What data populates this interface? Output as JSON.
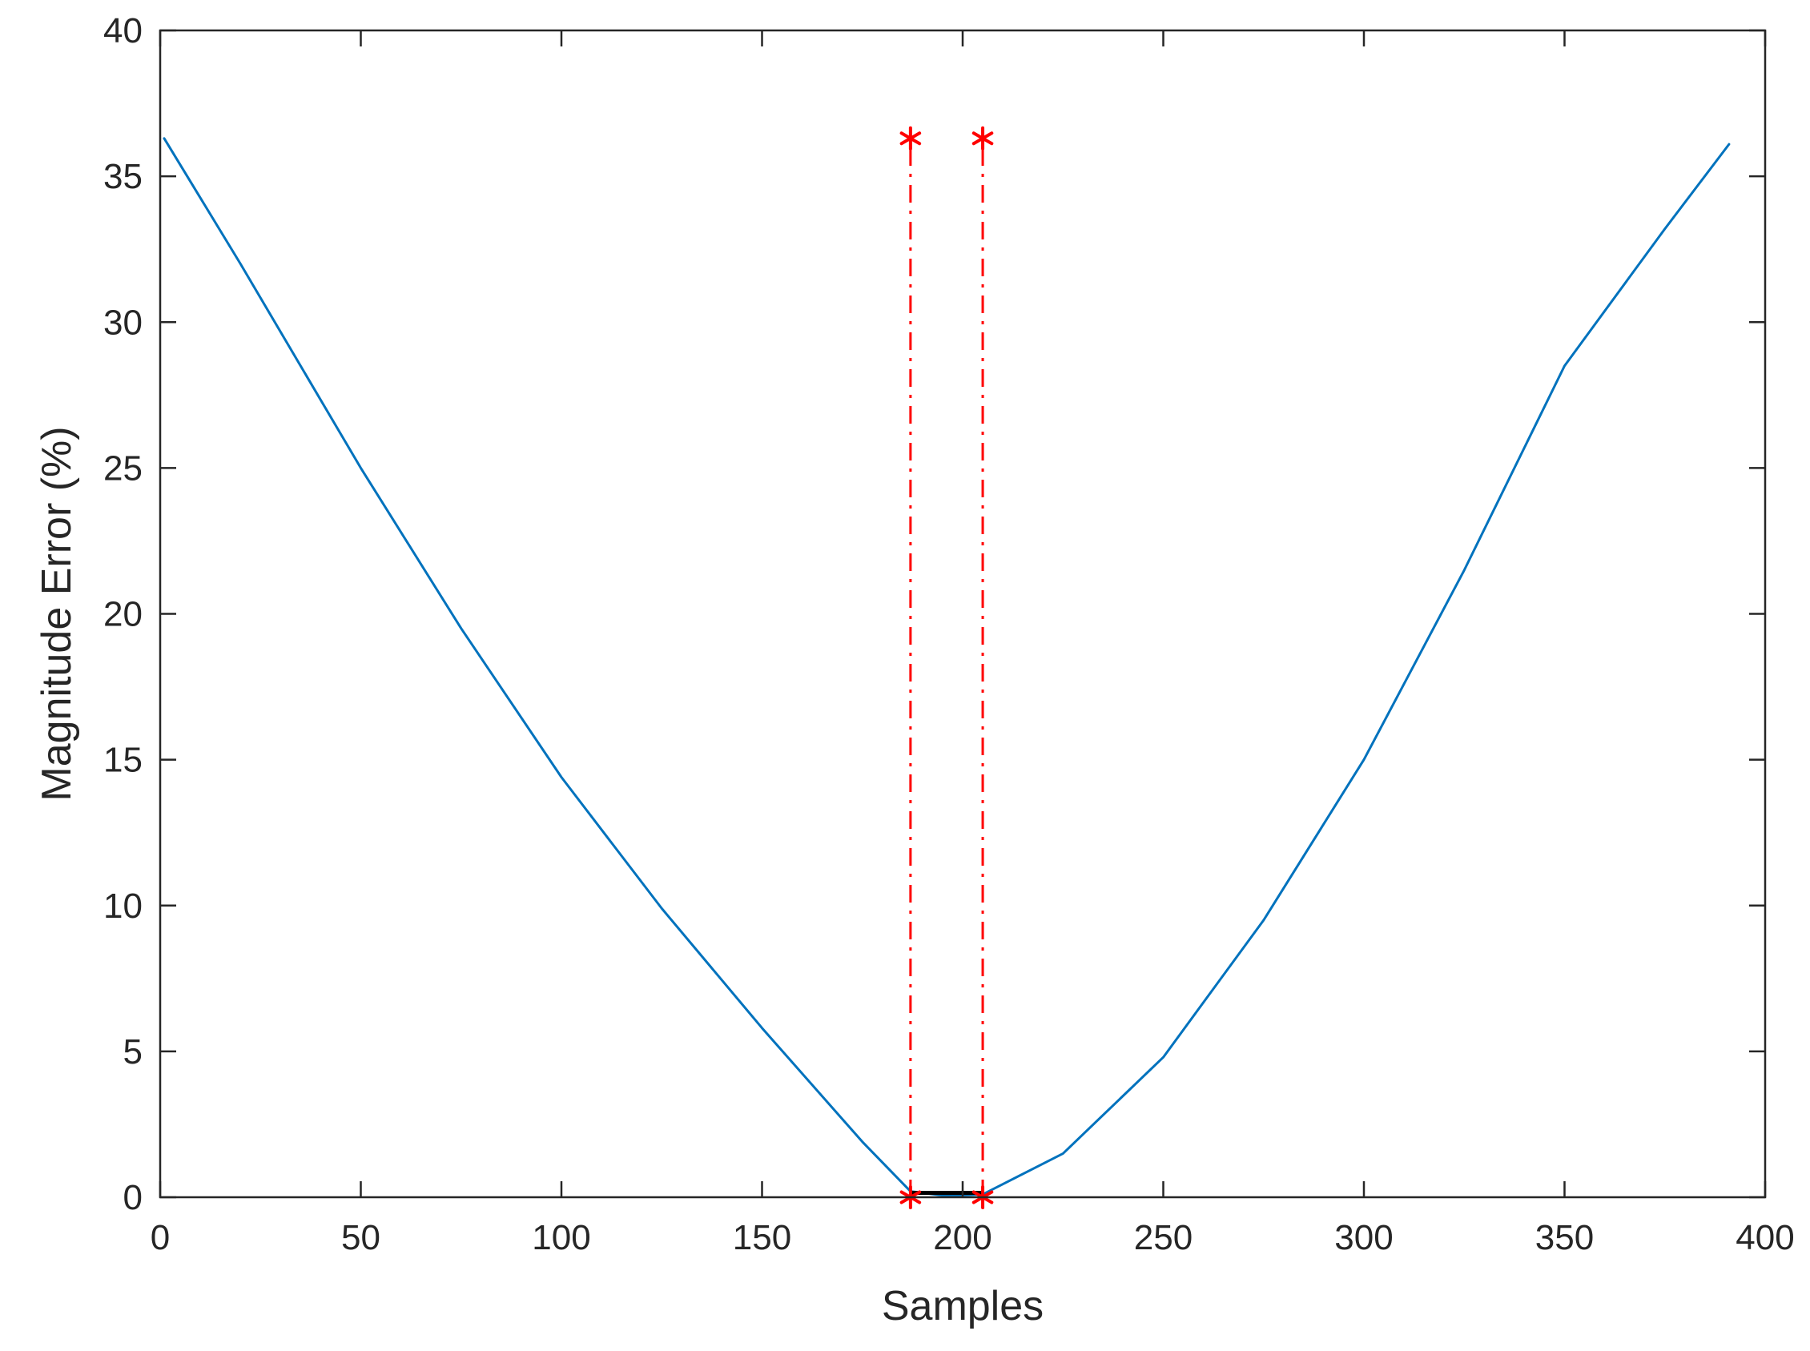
{
  "chart_data": {
    "type": "line",
    "title": "",
    "xlabel": "Samples",
    "ylabel": "Magnitude Error (%)",
    "xlim": [
      0,
      400
    ],
    "ylim": [
      0,
      40
    ],
    "xticks": [
      0,
      50,
      100,
      150,
      200,
      250,
      300,
      350,
      400
    ],
    "yticks": [
      0,
      5,
      10,
      15,
      20,
      25,
      30,
      35,
      40
    ],
    "grid": false,
    "legend": "none",
    "series": [
      {
        "color": "#0072BD",
        "style": "solid",
        "points": [
          [
            1,
            36.3
          ],
          [
            20,
            32.0
          ],
          [
            50,
            25.0
          ],
          [
            75,
            19.5
          ],
          [
            100,
            14.4
          ],
          [
            125,
            9.9
          ],
          [
            150,
            5.8
          ],
          [
            175,
            1.9
          ],
          [
            187,
            0.2
          ],
          [
            196,
            0.05
          ],
          [
            205,
            0.1
          ],
          [
            225,
            1.5
          ],
          [
            250,
            4.8
          ],
          [
            275,
            9.5
          ],
          [
            300,
            15.0
          ],
          [
            325,
            21.5
          ],
          [
            350,
            28.5
          ],
          [
            375,
            33.2
          ],
          [
            391,
            36.1
          ]
        ]
      }
    ],
    "markers": [
      {
        "x": 187,
        "y": 36.3,
        "symbol": "asterisk",
        "color": "#FF0000"
      },
      {
        "x": 187,
        "y": 0,
        "symbol": "asterisk",
        "color": "#FF0000"
      },
      {
        "x": 205,
        "y": 36.3,
        "symbol": "asterisk",
        "color": "#FF0000"
      },
      {
        "x": 205,
        "y": 0,
        "symbol": "asterisk",
        "color": "#FF0000"
      }
    ],
    "vertical_lines": [
      {
        "x": 187,
        "y_from": 0,
        "y_to": 36.3,
        "style": "dashdot",
        "color": "#FF0000"
      },
      {
        "x": 205,
        "y_from": 0,
        "y_to": 36.3,
        "style": "dashdot",
        "color": "#FF0000"
      }
    ],
    "segment": {
      "x_from": 187,
      "x_to": 205,
      "y": 0.15,
      "color": "#000000"
    }
  }
}
